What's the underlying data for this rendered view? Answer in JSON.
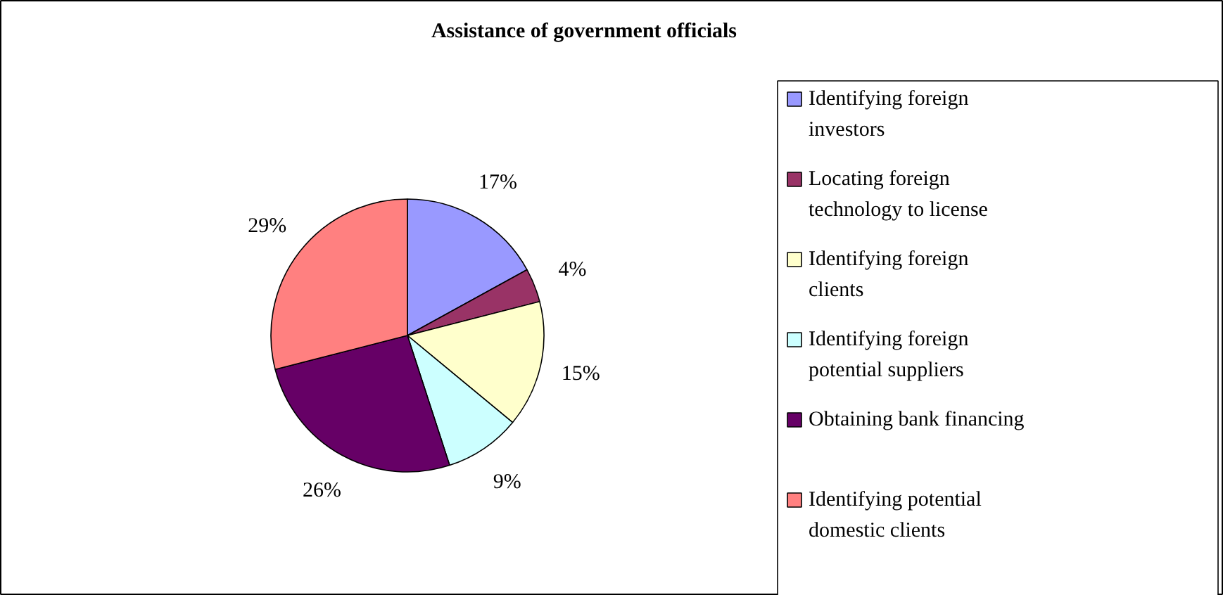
{
  "chart_data": {
    "type": "pie",
    "title": "Assistance of government officials",
    "categories": [
      "Identifying foreign investors",
      "Locating foreign technology to license",
      "Identifying foreign clients",
      "Identifying foreign potential suppliers",
      "Obtaining bank financing",
      "Identifying potential domestic clients"
    ],
    "values": [
      17,
      4,
      15,
      9,
      26,
      29
    ],
    "value_labels": [
      "17%",
      "4%",
      "15%",
      "9%",
      "26%",
      "29%"
    ],
    "colors": [
      "#9999ff",
      "#993366",
      "#ffffcc",
      "#ccffff",
      "#660066",
      "#ff8080"
    ],
    "legend": "right"
  }
}
